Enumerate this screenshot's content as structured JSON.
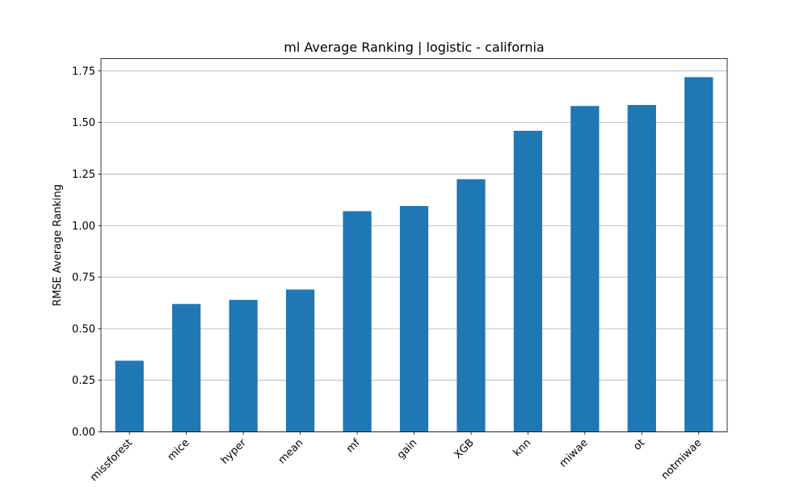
{
  "chart_data": {
    "type": "bar",
    "title": "ml Average Ranking | logistic - california",
    "xlabel": "",
    "ylabel": "RMSE Average Ranking",
    "categories": [
      "missforest",
      "mice",
      "hyper",
      "mean",
      "mf",
      "gain",
      "XGB",
      "knn",
      "miwae",
      "ot",
      "notmiwae"
    ],
    "values": [
      0.345,
      0.62,
      0.64,
      0.69,
      1.07,
      1.095,
      1.225,
      1.46,
      1.58,
      1.585,
      1.72
    ],
    "ylim": [
      0,
      1.81
    ],
    "yticks": [
      "0.00",
      "0.25",
      "0.50",
      "0.75",
      "1.00",
      "1.25",
      "1.50",
      "1.75"
    ],
    "grid": "horizontal",
    "legend": "none",
    "bar_color": "#1f77b4"
  }
}
